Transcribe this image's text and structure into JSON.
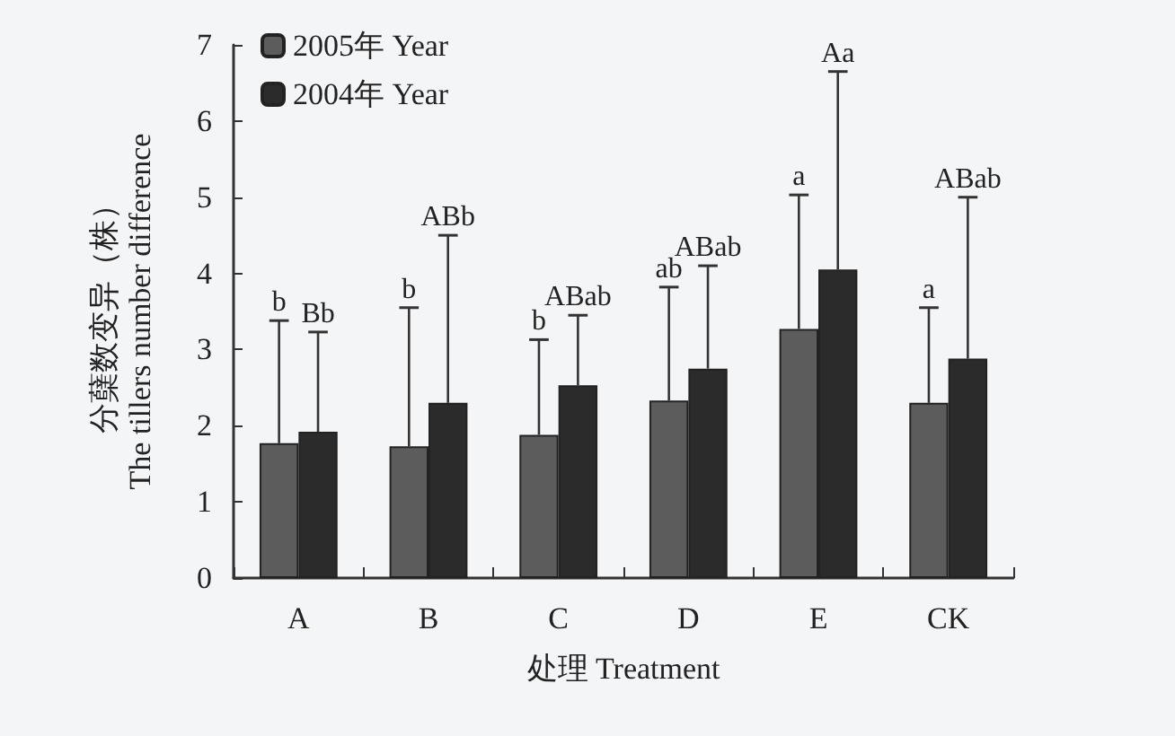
{
  "chart_data": {
    "type": "bar",
    "xlabel": "处理 Treatment",
    "ylabel": "分蘖数变异（株）\nThe tillers number difference",
    "categories": [
      "A",
      "B",
      "C",
      "D",
      "E",
      "CK"
    ],
    "series": [
      {
        "name": "2005年 Year",
        "color": "#5c5c5c",
        "values": [
          1.77,
          1.73,
          1.88,
          2.33,
          3.27,
          2.3
        ],
        "errors": [
          [
            1.77,
            3.38
          ],
          [
            1.73,
            3.55
          ],
          [
            1.88,
            3.13
          ],
          [
            2.33,
            3.82
          ],
          [
            3.27,
            5.03
          ],
          [
            2.3,
            3.55
          ]
        ]
      },
      {
        "name": "2004年 Year",
        "color": "#2b2b2b",
        "values": [
          1.92,
          2.3,
          2.53,
          2.75,
          4.05,
          2.88
        ],
        "errors": [
          [
            1.92,
            3.23
          ],
          [
            2.3,
            4.5
          ],
          [
            2.53,
            3.45
          ],
          [
            2.75,
            4.1
          ],
          [
            4.05,
            6.65
          ],
          [
            2.88,
            5.0
          ]
        ]
      }
    ],
    "annotations": [
      "b",
      "Bb",
      "b",
      "ABb",
      "b",
      "ABab",
      "ab",
      "ABab",
      "a",
      "Aa",
      "a",
      "ABab"
    ],
    "ylim": [
      0,
      7
    ],
    "yticks": [
      0,
      1,
      2,
      3,
      4,
      5,
      6,
      7
    ],
    "grid": false,
    "legend": "top left"
  }
}
